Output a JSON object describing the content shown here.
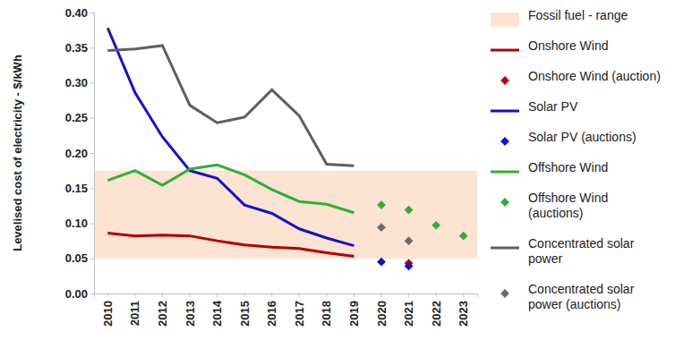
{
  "chart_data": {
    "type": "line",
    "y_label": "Levelised cost of electricity - $/kWh",
    "categories": [
      "2010",
      "2011",
      "2012",
      "2013",
      "2014",
      "2015",
      "2016",
      "2017",
      "2018",
      "2019",
      "2020",
      "2021",
      "2022",
      "2023"
    ],
    "ylim": [
      0,
      0.4
    ],
    "yticks": [
      {
        "value": 0,
        "label": "0.00"
      },
      {
        "value": 0.05,
        "label": "0.05"
      },
      {
        "value": 0.1,
        "label": "0.10"
      },
      {
        "value": 0.15,
        "label": "0.15"
      },
      {
        "value": 0.2,
        "label": "0.20"
      },
      {
        "value": 0.25,
        "label": "0.25"
      },
      {
        "value": 0.3,
        "label": "0.30"
      },
      {
        "value": 0.35,
        "label": "0.35"
      },
      {
        "value": 0.4,
        "label": "0.40"
      }
    ],
    "grid": false,
    "legend": "right",
    "series": [
      {
        "name": "Fossil fuel - range",
        "type": "band",
        "color": "#fde3d1",
        "low": 0.05,
        "high": 0.175
      },
      {
        "name": "Onshore Wind",
        "type": "line",
        "color": "#b00000",
        "line_style": "solid",
        "values": [
          0.086,
          0.082,
          0.083,
          0.082,
          0.075,
          0.069,
          0.066,
          0.064,
          0.058,
          0.053,
          null,
          null,
          null,
          null
        ]
      },
      {
        "name": "Onshore Wind (auction)",
        "type": "scatter",
        "color": "#c00000",
        "marker": "diamond",
        "values": [
          null,
          null,
          null,
          null,
          null,
          null,
          null,
          null,
          null,
          null,
          null,
          0.043,
          null,
          null
        ]
      },
      {
        "name": "Solar PV",
        "type": "line",
        "color": "#1212c4",
        "line_style": "solid",
        "values": [
          0.378,
          0.286,
          0.223,
          0.175,
          0.164,
          0.126,
          0.114,
          0.092,
          0.079,
          0.068,
          null,
          null,
          null,
          null
        ]
      },
      {
        "name": "Solar PV (auctions)",
        "type": "scatter",
        "color": "#1212c4",
        "marker": "diamond",
        "values": [
          null,
          null,
          null,
          null,
          null,
          null,
          null,
          null,
          null,
          null,
          0.045,
          0.039,
          null,
          null
        ]
      },
      {
        "name": "Offshore Wind",
        "type": "line",
        "color": "#2fb12f",
        "line_style": "solid",
        "values": [
          0.161,
          0.175,
          0.154,
          0.177,
          0.183,
          0.169,
          0.148,
          0.131,
          0.127,
          0.115,
          null,
          null,
          null,
          null
        ]
      },
      {
        "name": "Offshore Wind (auctions)",
        "type": "scatter",
        "color": "#2fb12f",
        "marker": "diamond",
        "values": [
          null,
          null,
          null,
          null,
          null,
          null,
          null,
          null,
          null,
          null,
          0.126,
          0.119,
          0.097,
          0.082
        ]
      },
      {
        "name": "Concentrated solar power",
        "type": "line",
        "color": "#5f5f5f",
        "line_style": "solid",
        "values": [
          0.346,
          0.348,
          0.353,
          0.268,
          0.243,
          0.251,
          0.29,
          0.253,
          0.184,
          0.182,
          null,
          null,
          null,
          null
        ]
      },
      {
        "name": "Concentrated solar power (auctions)",
        "type": "scatter",
        "color": "#6a6a6a",
        "marker": "diamond",
        "values": [
          null,
          null,
          null,
          null,
          null,
          null,
          null,
          null,
          null,
          null,
          0.094,
          0.075,
          null,
          null
        ]
      }
    ]
  }
}
